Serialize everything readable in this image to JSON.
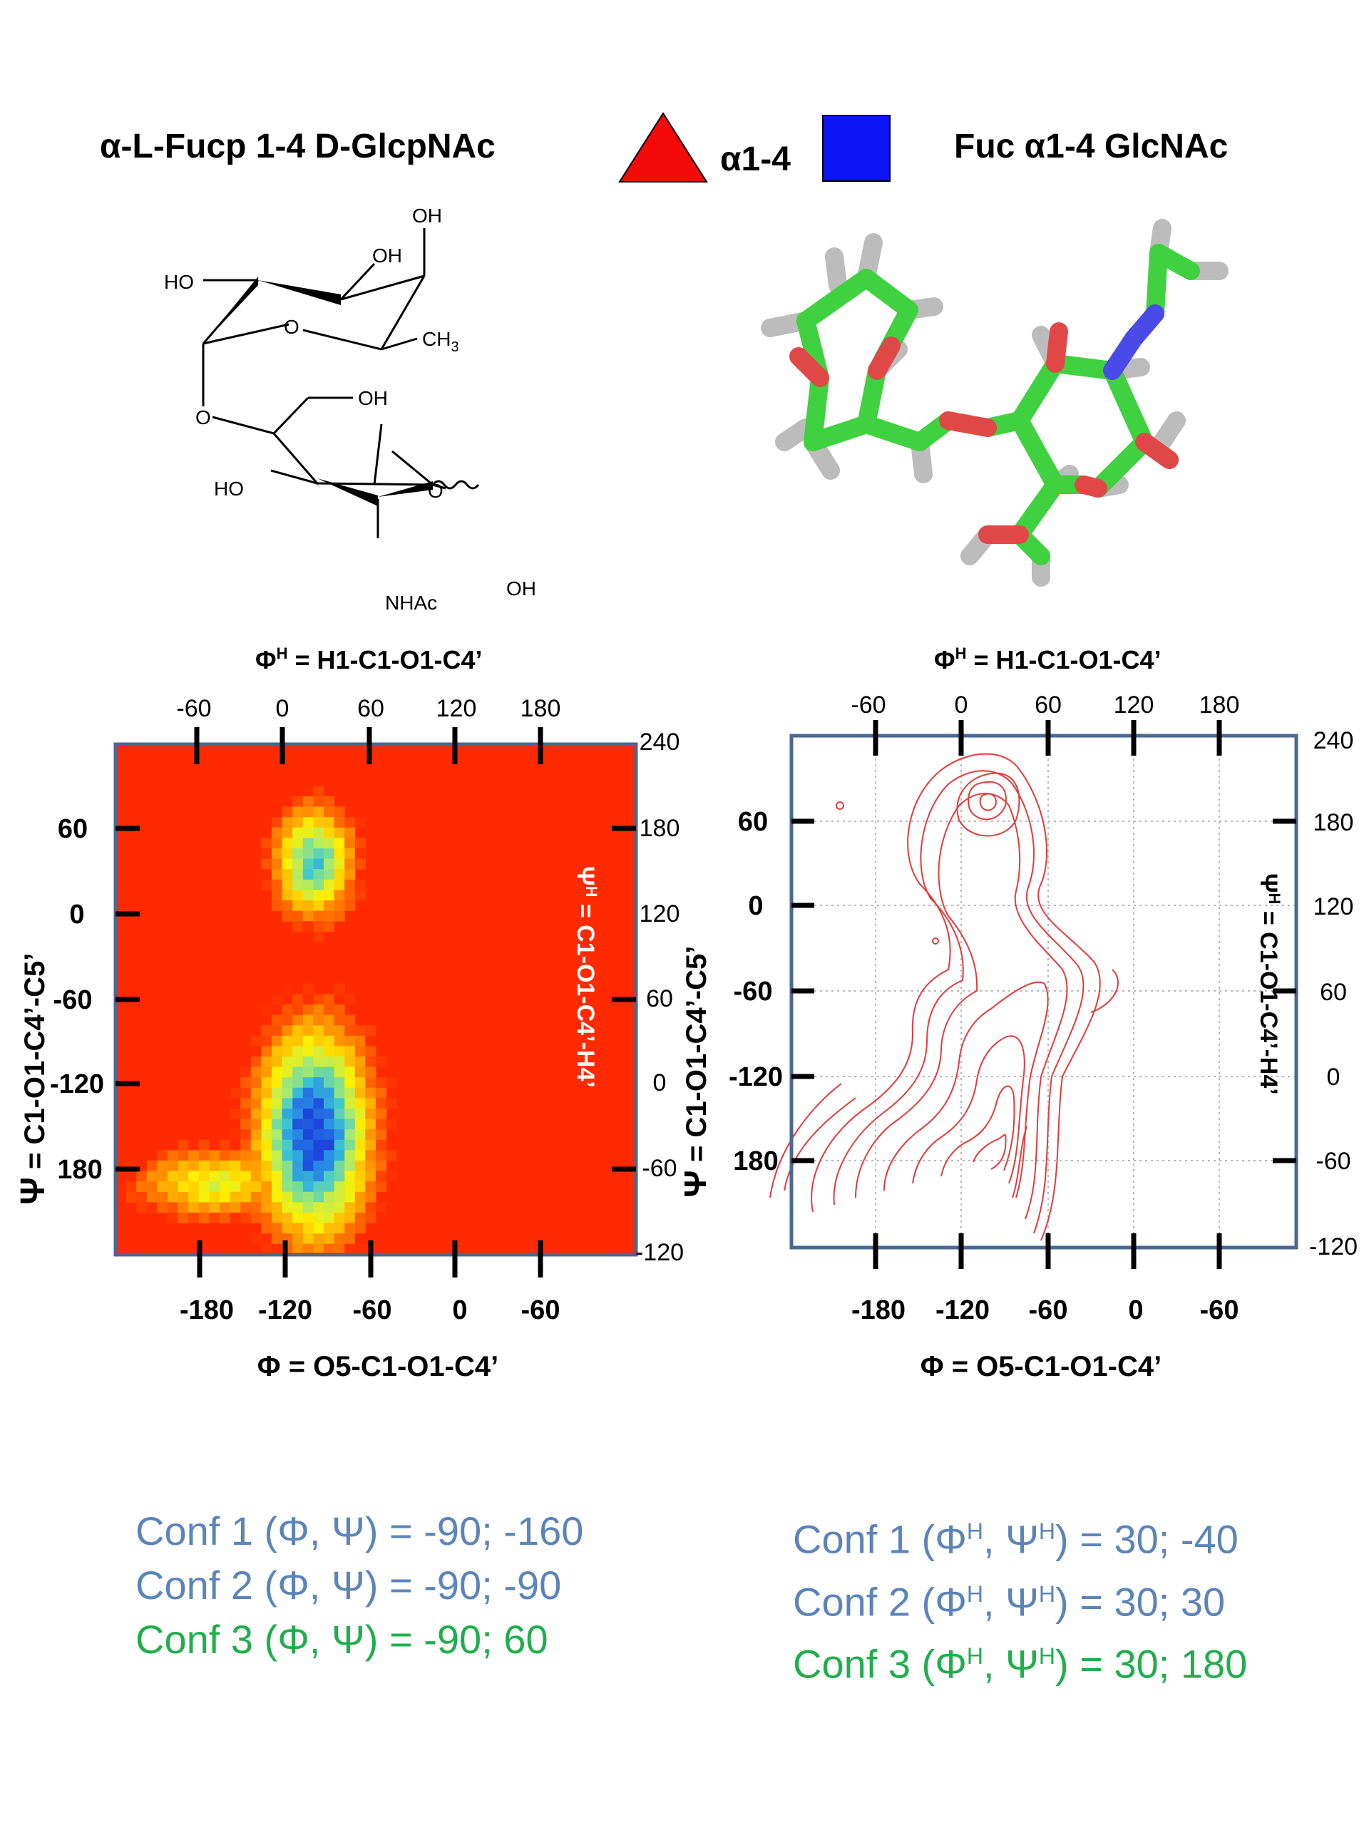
{
  "header": {
    "left_title": "α-L-Fucp 1-4 D-GlcpNAc",
    "linkage": "α1-4",
    "right_title": "Fuc α1-4 GlcNAc",
    "triangle_color": "#f50a0a",
    "square_color": "#0a14f5"
  },
  "structure": {
    "labels": [
      "OH",
      "OH",
      "HO",
      "O",
      "CH3",
      "O",
      "OH",
      "HO",
      "O",
      "NHAc",
      "OH"
    ],
    "h_oh": "OH",
    "h_oh2": "OH",
    "h_ho": "HO",
    "h_o_ring": "O",
    "h_ch": "CH",
    "h_3": "3",
    "h_o_link": "O",
    "h_oh3": "OH",
    "h_ho2": "HO",
    "h_o_ring2": "O",
    "h_nhac": "NHAc",
    "h_oh4": "OH"
  },
  "plots": {
    "left": {
      "top_axis_title_main": "Φ",
      "top_axis_title_sup": "H",
      "top_axis_title_rest": " = H1-C1-O1-C4’",
      "top_ticks": [
        "-60",
        "0",
        "60",
        "120",
        "180"
      ],
      "bottom_ticks": [
        "-180",
        "-120",
        "-60",
        "0",
        "-60"
      ],
      "bottom_axis_title": "Φ = O5-C1-O1-C4’",
      "left_ticks": [
        "60",
        "0",
        "-60",
        "-120",
        "180"
      ],
      "left_axis_title_main": "Ψ",
      "left_axis_title_rest": " = C1-O1-C4’-C5’",
      "right_ticks": [
        "240",
        "180",
        "120",
        "60",
        "0",
        "-60",
        "-120"
      ],
      "right_axis_title_main": "Ψ",
      "right_axis_title_sup": "H",
      "right_axis_title_rest": " = C1-O1-C4’-H4’"
    },
    "right": {
      "top_axis_title_main": "Φ",
      "top_axis_title_sup": "H",
      "top_axis_title_rest": " = H1-C1-O1-C4’",
      "top_ticks": [
        "-60",
        "0",
        "60",
        "120",
        "180"
      ],
      "bottom_ticks": [
        "-180",
        "-120",
        "-60",
        "0",
        "-60"
      ],
      "bottom_axis_title": "Φ = O5-C1-O1-C4’",
      "left_ticks": [
        "60",
        "0",
        "-60",
        "-120",
        "180"
      ],
      "left_axis_title_main": "Ψ",
      "left_axis_title_rest": " = C1-O1-C4’-C5’",
      "right_ticks": [
        "240",
        "180",
        "120",
        "60",
        "0",
        "-60",
        "-120"
      ],
      "right_axis_title_main": "Ψ",
      "right_axis_title_sup": "H",
      "right_axis_title_rest": " = C1-O1-C4’-H4’"
    }
  },
  "conformations": {
    "left": [
      {
        "text_a": "Conf 1 (Φ, Ψ) = -90; -160",
        "color": "#5b84b9"
      },
      {
        "text_a": "Conf 2 (Φ, Ψ) = -90;  -90",
        "color": "#5b84b9"
      },
      {
        "text_a": "Conf 3 (Φ, Ψ) = -90;  60",
        "color": "#1fae4b"
      }
    ],
    "right": {
      "c1_a": "Conf 1 (Φ",
      "c1_b": "H",
      "c1_c": ", Ψ",
      "c1_d": "H",
      "c1_e": ") = 30; -40",
      "c2_a": "Conf 2 (Φ",
      "c2_b": "H",
      "c2_c": ", Ψ",
      "c2_d": "H",
      "c2_e": ") =  30; 30",
      "c3_a": "Conf 3 (Φ",
      "c3_b": "H",
      "c3_c": ", Ψ",
      "c3_d": "H",
      "c3_e": ") =  30; 180"
    }
  }
}
